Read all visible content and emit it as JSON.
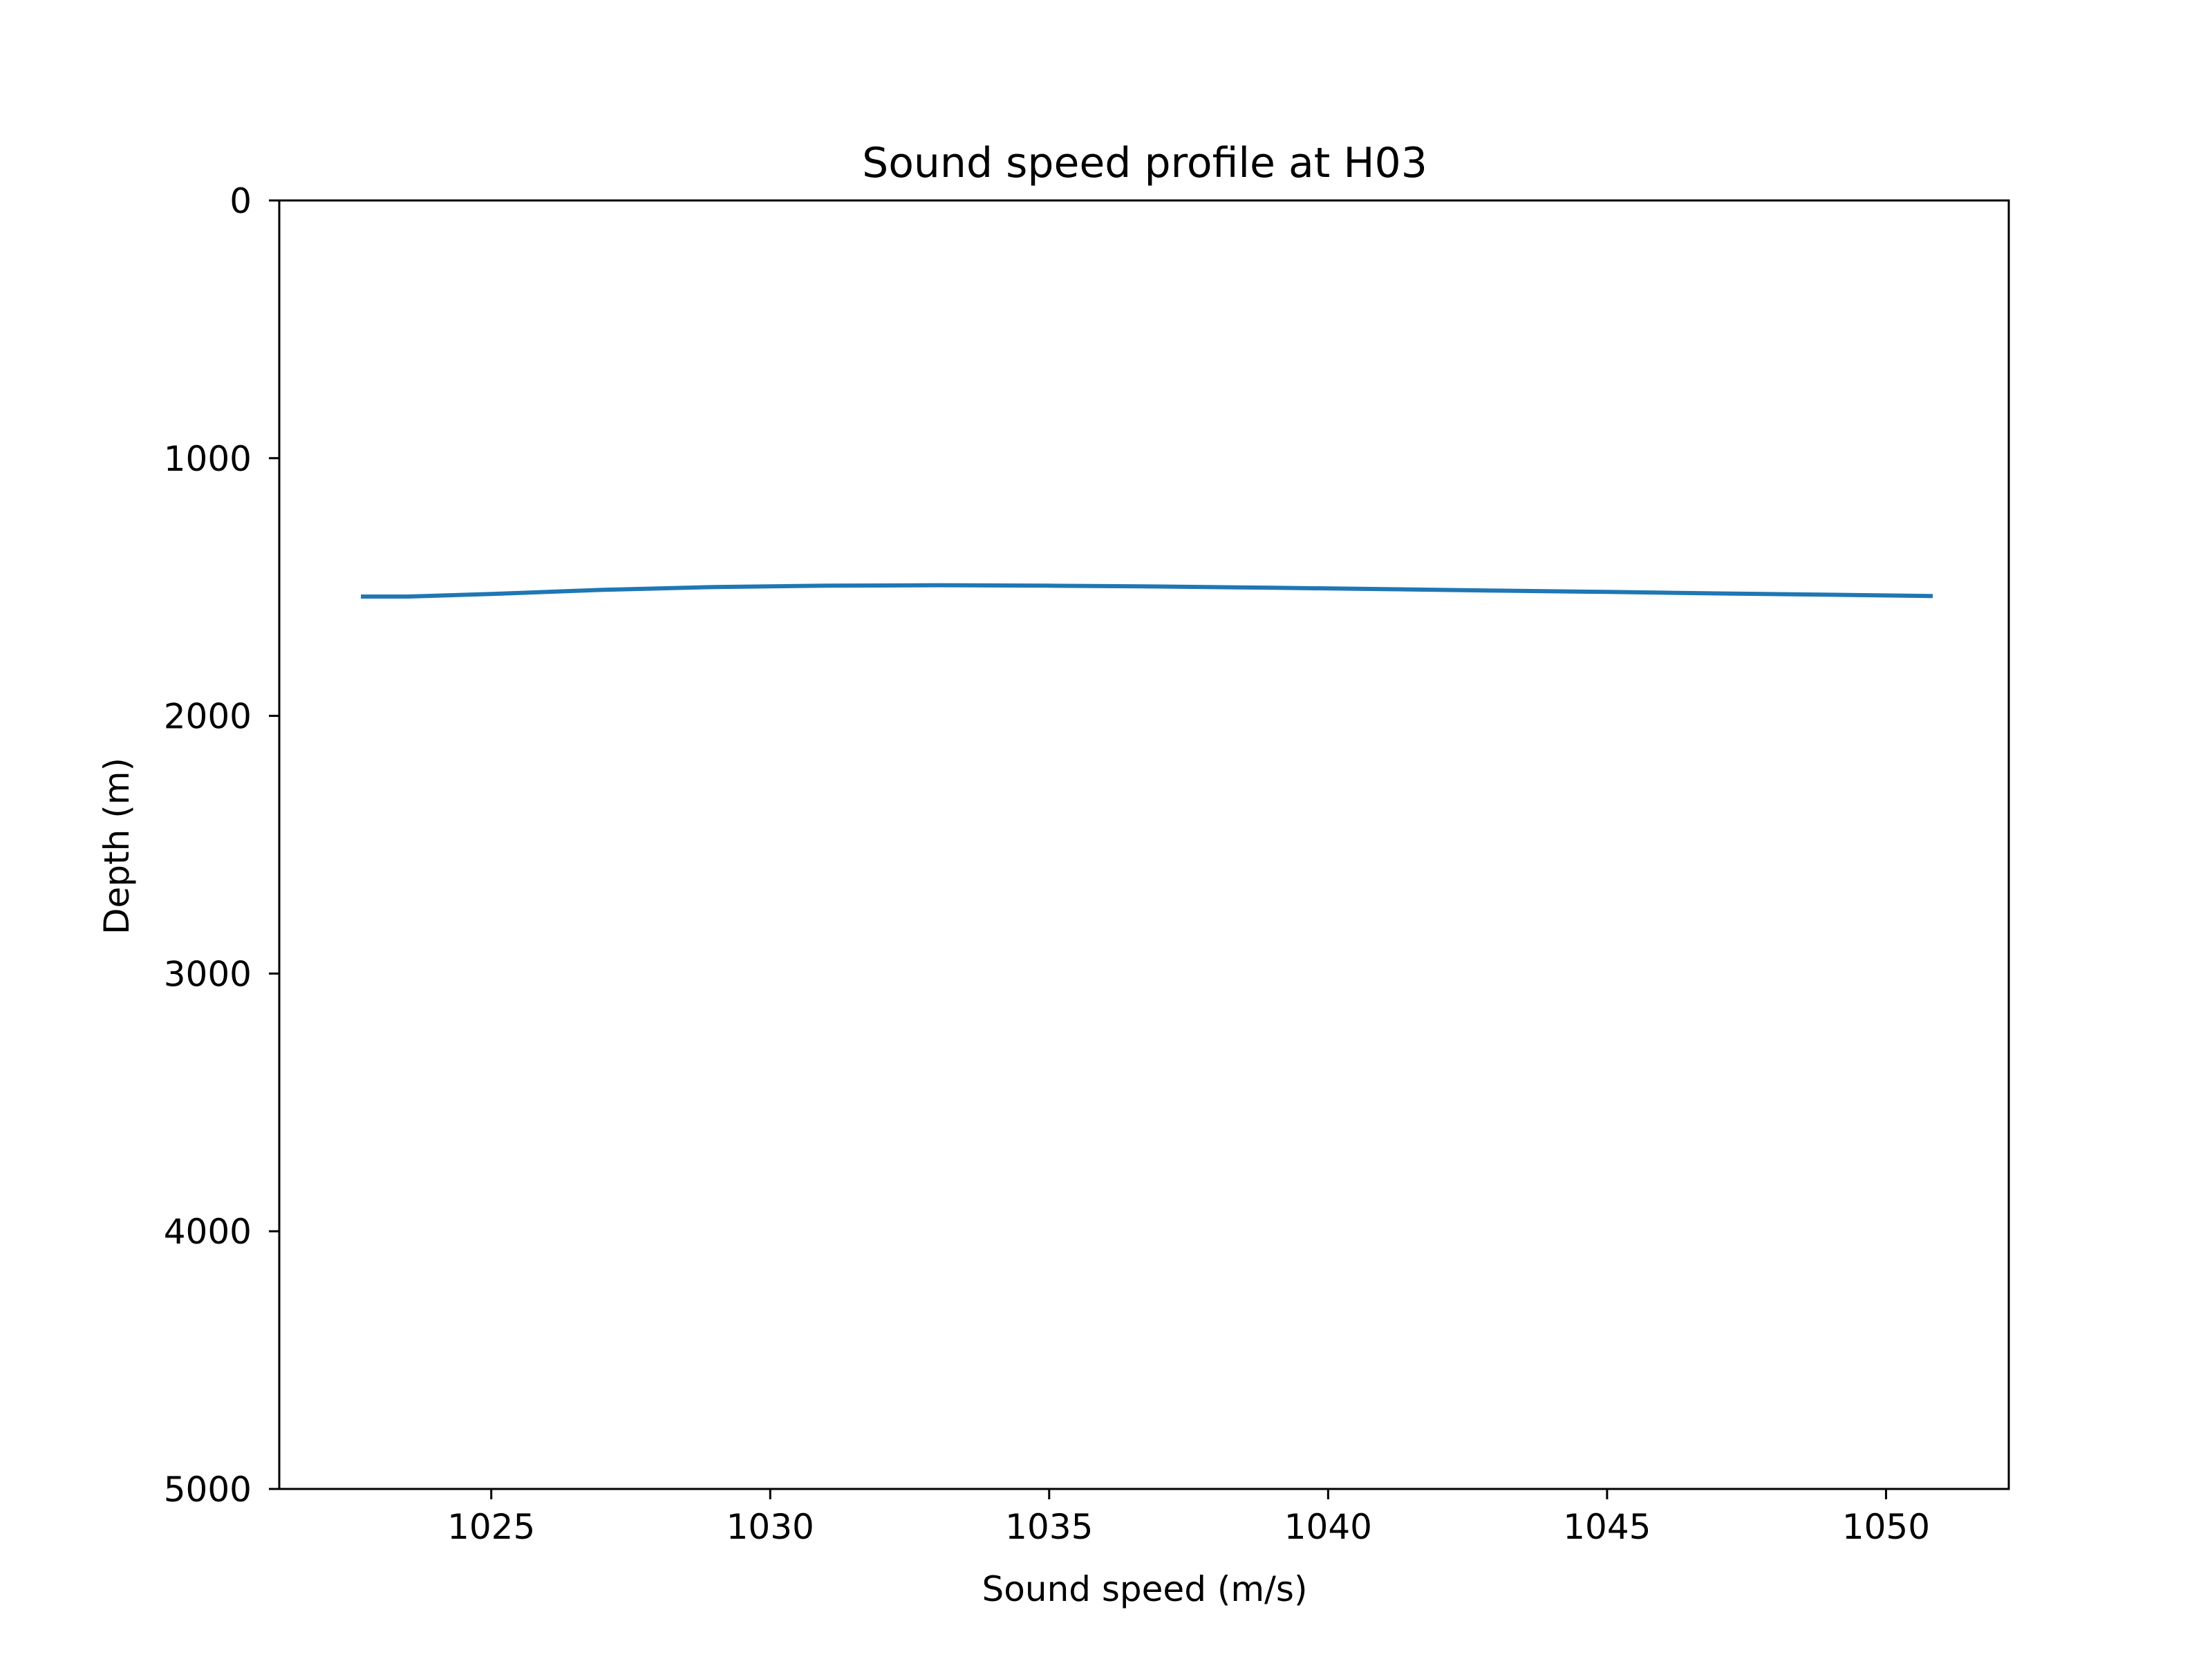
{
  "chart_data": {
    "type": "line",
    "title": "Sound speed profile at H03",
    "xlabel": "Sound speed (m/s)",
    "ylabel": "Depth (m)",
    "xlim": [
      1021.2,
      1052.2
    ],
    "ylim": [
      5000,
      0
    ],
    "y_inverted": true,
    "grid": false,
    "legend": "none",
    "x_ticks": [
      1025,
      1030,
      1035,
      1040,
      1045,
      1050
    ],
    "y_ticks": [
      0,
      1000,
      2000,
      3000,
      4000,
      5000
    ],
    "x_tick_labels": [
      "1025",
      "1030",
      "1035",
      "1040",
      "1045",
      "1050"
    ],
    "y_tick_labels": [
      "0",
      "1000",
      "2000",
      "3000",
      "4000",
      "5000"
    ],
    "series": [
      {
        "color": "#1f77b4",
        "x": [
          1022.7,
          1023.5,
          1025,
          1027,
          1029,
          1031,
          1033,
          1035,
          1037,
          1039,
          1041,
          1043,
          1045,
          1047,
          1049,
          1050.8
        ],
        "y": [
          1537,
          1537,
          1527,
          1511,
          1500,
          1495,
          1493,
          1495,
          1498,
          1503,
          1508,
          1514,
          1519,
          1525,
          1530,
          1535
        ]
      }
    ]
  }
}
